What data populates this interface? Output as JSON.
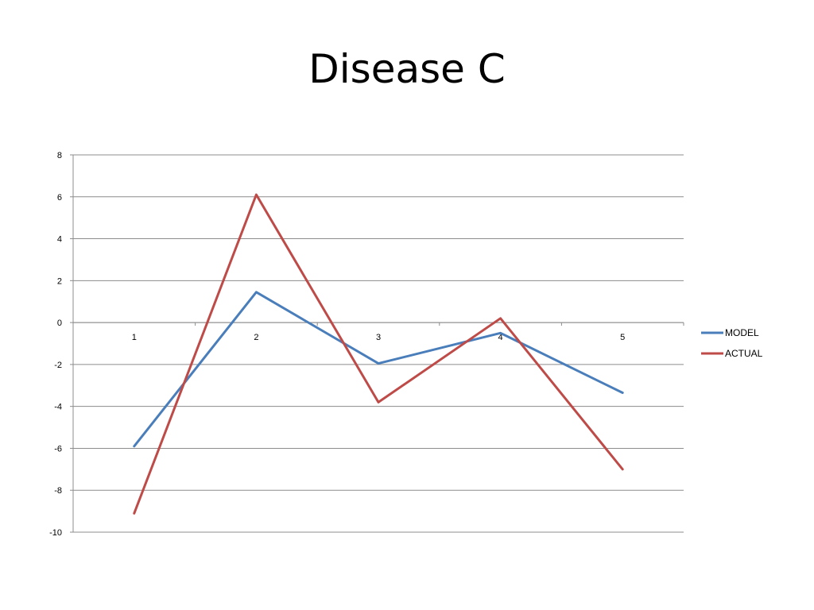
{
  "slide": {
    "title": "Disease C"
  },
  "chart_data": {
    "type": "line",
    "title": "Disease C",
    "xlabel": "",
    "ylabel": "",
    "categories": [
      "1",
      "2",
      "3",
      "4",
      "5"
    ],
    "ylim": [
      -10,
      8
    ],
    "yticks": [
      8,
      6,
      4,
      2,
      0,
      -2,
      -4,
      -6,
      -8,
      -10
    ],
    "grid": true,
    "legend": "right",
    "series": [
      {
        "name": "MODEL",
        "color": "#4a7ebb",
        "values": [
          -5.9,
          1.45,
          -1.95,
          -0.5,
          -3.35
        ]
      },
      {
        "name": "ACTUAL",
        "color": "#be4b48",
        "values": [
          -9.1,
          6.1,
          -3.8,
          0.2,
          -7.0
        ]
      }
    ]
  }
}
